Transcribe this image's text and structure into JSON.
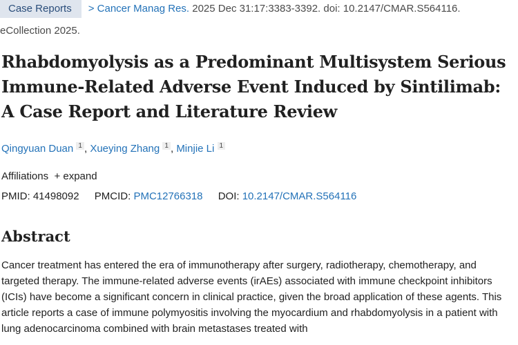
{
  "badge": "Case Reports",
  "journal": "Cancer Manag Res.",
  "citation": "2025 Dec 31:17:3383-3392. doi: 10.2147/CMAR.S564116.",
  "ecollection": "eCollection 2025.",
  "title": "Rhabdomyolysis as a Predominant Multisystem Serious Immune-Related Adverse Event Induced by Sintilimab: A Case Report and Literature Review",
  "authors": [
    {
      "name": "Qingyuan Duan",
      "aff": "1"
    },
    {
      "name": "Xueying Zhang",
      "aff": "1"
    },
    {
      "name": "Minjie Li",
      "aff": "1"
    }
  ],
  "affiliations_label": "Affiliations",
  "expand_label": "+ expand",
  "pmid_label": "PMID:",
  "pmid": "41498092",
  "pmcid_label": "PMCID:",
  "pmcid": "PMC12766318",
  "doi_label": "DOI:",
  "doi": "10.2147/CMAR.S564116",
  "abstract_heading": "Abstract",
  "abstract_text": "Cancer treatment has entered the era of immunotherapy after surgery, radiotherapy, chemotherapy, and targeted therapy. The immune-related adverse events (irAEs) associated with immune checkpoint inhibitors (ICIs) have become a significant concern in clinical practice, given the broad application of these agents. This article reports a case of immune polymyositis involving the myocardium and rhabdomyolysis in a patient with lung adenocarcinoma combined with brain metastases treated with"
}
